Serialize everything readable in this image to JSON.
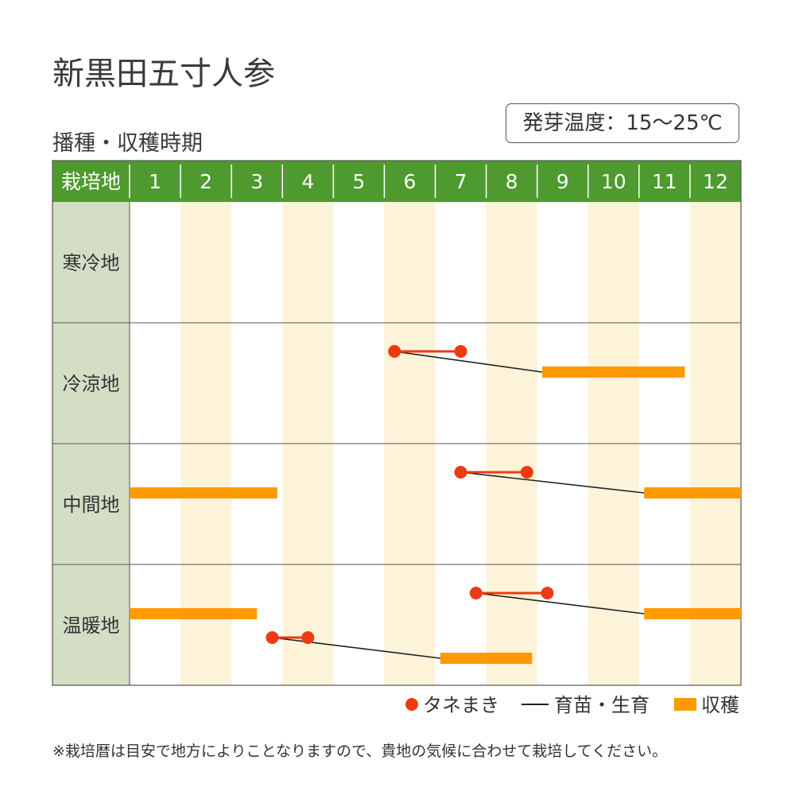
{
  "title": "新黒田五寸人参",
  "subtitle": "播種・収穫時期",
  "germination_temp": "発芽温度：15〜25℃",
  "footnote": "※栽培暦は目安で地方によりことなりますので、貴地の気候に合わせて栽培してください。",
  "colors": {
    "header_green": "#4e9a2e",
    "region_bg": "#d4dec5",
    "alt_column": "#fdf3d9",
    "grid": "#555555",
    "sowing": "#ee3a12",
    "growing": "#222222",
    "harvest": "#ff9900"
  },
  "legend": [
    {
      "label": "タネまき",
      "symbol": "dot"
    },
    {
      "label": "育苗・生育",
      "symbol": "line"
    },
    {
      "label": "収穫",
      "symbol": "bar"
    }
  ],
  "chart_data": {
    "type": "gantt",
    "header_label": "栽培地",
    "months": [
      "1",
      "2",
      "3",
      "4",
      "5",
      "6",
      "7",
      "8",
      "9",
      "10",
      "11",
      "12"
    ],
    "regions": [
      "寒冷地",
      "冷涼地",
      "中間地",
      "温暖地"
    ],
    "tasks": [
      {
        "region": "冷涼地",
        "sow": [
          6.2,
          7.5
        ],
        "harvest": [
          9.1,
          11.9
        ]
      },
      {
        "region": "中間地",
        "sow": [
          7.5,
          8.8
        ],
        "harvest": [
          11.1,
          13.0
        ],
        "harvest_prev": [
          1.0,
          3.9
        ]
      },
      {
        "region": "温暖地",
        "sow": [
          7.8,
          9.2
        ],
        "harvest": [
          11.1,
          13.0
        ],
        "harvest_prev": [
          1.0,
          3.5
        ]
      },
      {
        "region": "温暖地",
        "sow": [
          3.8,
          4.5
        ],
        "harvest": [
          7.1,
          8.9
        ]
      }
    ]
  }
}
